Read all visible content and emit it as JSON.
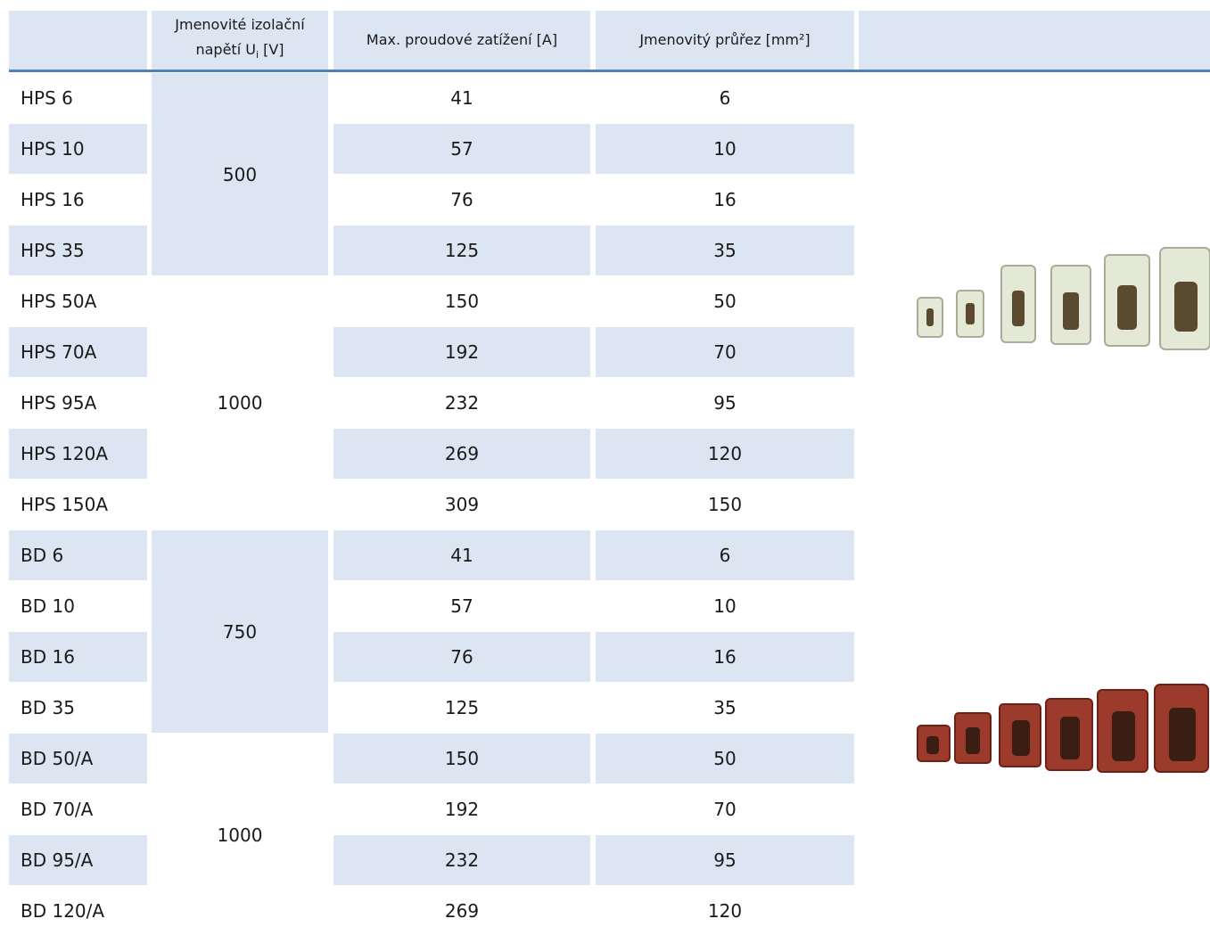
{
  "header": {
    "columns": [
      "",
      {
        "text": "Jmenovité izolační napětí U",
        "sub": "i",
        "tail": " [V]"
      },
      "Max. proudové zatížení [A]",
      "Jmenovitý průřez [mm²]",
      ""
    ]
  },
  "groups": [
    {
      "voltage": "500",
      "products": [
        [
          "HPS 6",
          "41",
          "6"
        ],
        [
          "HPS 10",
          "57",
          "10"
        ],
        [
          "HPS 16",
          "76",
          "16"
        ],
        [
          "HPS 35",
          "125",
          "35"
        ]
      ]
    },
    {
      "voltage": "1000",
      "products": [
        [
          "HPS 50A",
          "150",
          "50"
        ],
        [
          "HPS 70A",
          "192",
          "70"
        ],
        [
          "HPS 95A",
          "232",
          "95"
        ],
        [
          "HPS 120A",
          "269",
          "120"
        ],
        [
          "HPS 150A",
          "309",
          "150"
        ]
      ]
    },
    {
      "voltage": "750",
      "products": [
        [
          "BD 6",
          "41",
          "6"
        ],
        [
          "BD 10",
          "57",
          "10"
        ],
        [
          "BD 16",
          "76",
          "16"
        ],
        [
          "BD 35",
          "125",
          "35"
        ]
      ]
    },
    {
      "voltage": "1000",
      "products": [
        [
          "BD 50/A",
          "150",
          "50"
        ],
        [
          "BD 70/A",
          "192",
          "70"
        ],
        [
          "BD 95/A",
          "232",
          "95"
        ],
        [
          "BD 120/A",
          "269",
          "120"
        ]
      ]
    }
  ]
}
